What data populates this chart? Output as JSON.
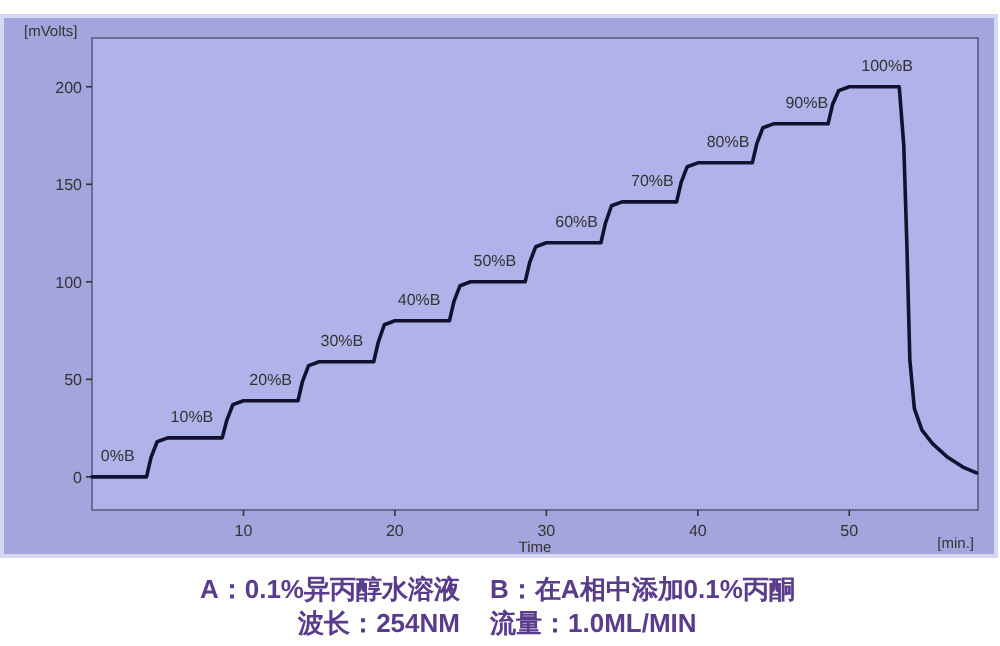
{
  "chart_data": {
    "type": "line",
    "xlabel": "Time",
    "ylabel": "[mVolts]",
    "xlim": [
      0,
      58.5
    ],
    "ylim": [
      -17,
      225
    ],
    "xticks": [
      10,
      20,
      30,
      40,
      50
    ],
    "yticks": [
      0,
      50,
      100,
      150,
      200
    ],
    "marker": "none",
    "line_style": "solid",
    "series": [
      {
        "color": "#12122e",
        "x": [
          0,
          1,
          2,
          3,
          3.6,
          3.9,
          4.3,
          5,
          8.6,
          8.9,
          9.3,
          10,
          13.6,
          13.9,
          14.3,
          15,
          18.6,
          18.9,
          19.3,
          20,
          23.6,
          23.9,
          24.3,
          25,
          28.6,
          28.9,
          29.3,
          30,
          33.6,
          33.9,
          34.3,
          35,
          38.6,
          38.9,
          39.3,
          40,
          43.6,
          43.9,
          44.3,
          45,
          48.6,
          48.9,
          49.3,
          50,
          53.3,
          53.6,
          53.8,
          54,
          54.3,
          54.8,
          55.5,
          56.5,
          57.5,
          58.4
        ],
        "values": [
          0,
          0,
          0,
          0,
          0,
          10,
          18,
          20,
          20,
          29,
          37,
          39,
          39,
          49,
          57,
          59,
          59,
          69,
          78,
          80,
          80,
          90,
          98,
          100,
          100,
          110,
          118,
          120,
          120,
          130,
          139,
          141,
          141,
          151,
          159,
          161,
          161,
          171,
          179,
          181,
          181,
          191,
          198,
          200,
          200,
          170,
          120,
          60,
          35,
          24,
          17,
          10,
          5,
          2
        ]
      }
    ],
    "annotations": [
      {
        "text": "0%B",
        "x": 1.7,
        "y": 0
      },
      {
        "text": "10%B",
        "x": 6.6,
        "y": 20
      },
      {
        "text": "20%B",
        "x": 11.8,
        "y": 39
      },
      {
        "text": "30%B",
        "x": 16.5,
        "y": 59
      },
      {
        "text": "40%B",
        "x": 21.6,
        "y": 80
      },
      {
        "text": "50%B",
        "x": 26.6,
        "y": 100
      },
      {
        "text": "60%B",
        "x": 32,
        "y": 120
      },
      {
        "text": "70%B",
        "x": 37,
        "y": 141
      },
      {
        "text": "80%B",
        "x": 42,
        "y": 161
      },
      {
        "text": "90%B",
        "x": 47.2,
        "y": 181
      },
      {
        "text": "100%B",
        "x": 52.5,
        "y": 200
      },
      "[min.]",
      "A：0.1%异丙醇水溶液",
      "B：在A相中添加0.1%丙酮",
      "波长：254NM",
      "流量：1.0ML/MIN"
    ]
  }
}
